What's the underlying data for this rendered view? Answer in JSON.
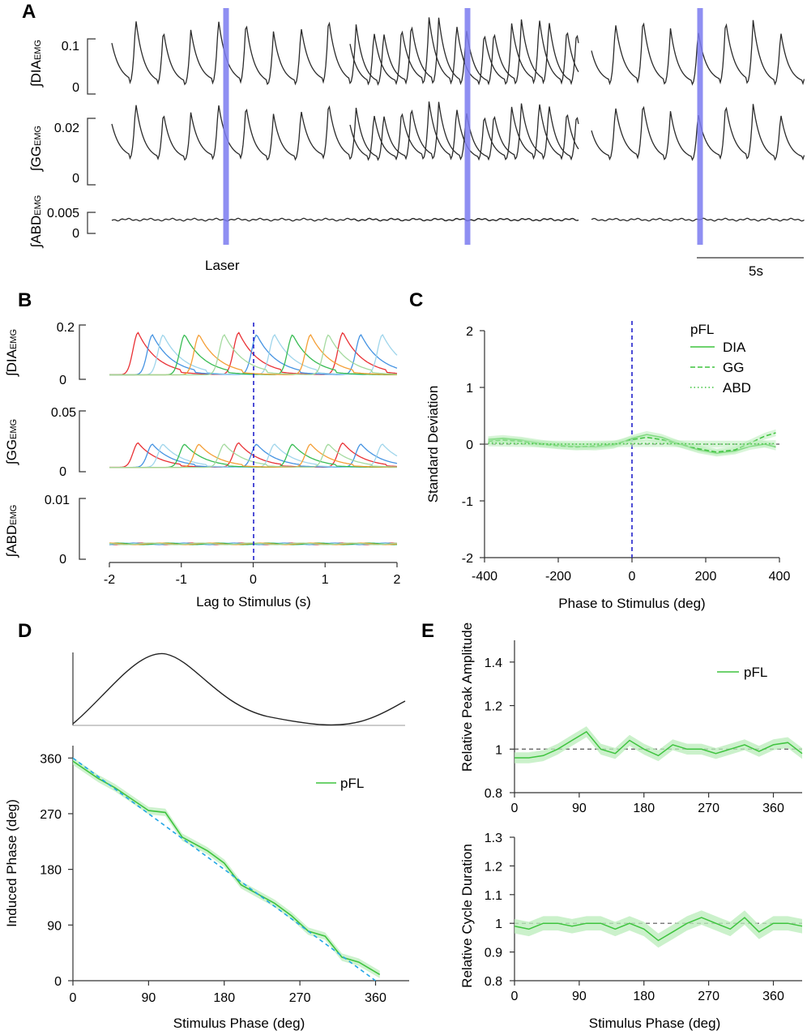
{
  "figure": {
    "panel_labels": [
      "A",
      "B",
      "C",
      "D",
      "E"
    ],
    "colors": {
      "axis": "#333333",
      "trace": "#2b2b2b",
      "laser": "#7b7bf0",
      "green": "#3fc43f",
      "green_band": "#b9ecb9",
      "blue_dash": "#2222cc",
      "cyan_dash": "#22a6e6",
      "zero_dash": "#555555"
    }
  },
  "chart_data": [
    {
      "panel": "A",
      "type": "line",
      "title": "",
      "rows": [
        {
          "label_main": "∫DIA",
          "label_sub": "EMG",
          "tick_top": "0.1",
          "tick_bottom": "0"
        },
        {
          "label_main": "∫GG",
          "label_sub": "EMG",
          "tick_top": "0.02",
          "tick_bottom": "0"
        },
        {
          "label_main": "∫ABD",
          "label_sub": "EMG",
          "tick_top": "0.005",
          "tick_bottom": "0"
        }
      ],
      "laser_label": "Laser",
      "scalebar_label": "5s",
      "segments": 3
    },
    {
      "panel": "B",
      "type": "line",
      "xlabel": "Lag to Stimulus (s)",
      "xlim": [
        -2,
        2
      ],
      "xticks": [
        "-2",
        "-1",
        "0",
        "1",
        "2"
      ],
      "rows": [
        {
          "label_main": "∫DIA",
          "label_sub": "EMG",
          "tick_top": "0.2",
          "tick_bottom": "0"
        },
        {
          "label_main": "∫GG",
          "label_sub": "EMG",
          "tick_top": "0.05",
          "tick_bottom": "0"
        },
        {
          "label_main": "∫ABD",
          "label_sub": "EMG",
          "tick_top": "0.01",
          "tick_bottom": "0"
        }
      ],
      "series_colors": [
        "#e8262a",
        "#3b8de0",
        "#9ad3ea",
        "#2db84b",
        "#f39a2c",
        "#9fd89a"
      ],
      "peak_times": [
        -1.6,
        -1.4,
        -1.25,
        -0.95,
        -0.75,
        -0.4,
        -0.2,
        0.05,
        0.3,
        0.55,
        0.8,
        1.05,
        1.25,
        1.5,
        1.8
      ]
    },
    {
      "panel": "C",
      "type": "line",
      "xlabel": "Phase to Stimulus (deg)",
      "ylabel": "Standard Deviation",
      "xlim": [
        -400,
        400
      ],
      "ylim": [
        -2,
        2
      ],
      "xticks": [
        "-400",
        "-200",
        "0",
        "200",
        "400"
      ],
      "yticks": [
        "2",
        "1",
        "0",
        "-1",
        "-2"
      ],
      "legend_title": "pFL",
      "legend": [
        "DIA",
        "GG",
        "ABD"
      ],
      "series": [
        {
          "name": "DIA",
          "x": [
            -390,
            -350,
            -300,
            -250,
            -200,
            -150,
            -100,
            -50,
            0,
            40,
            80,
            130,
            180,
            230,
            280,
            320,
            360,
            390
          ],
          "values": [
            0.08,
            0.1,
            0.07,
            0.02,
            -0.02,
            -0.04,
            -0.05,
            -0.02,
            0.1,
            0.17,
            0.12,
            0.0,
            -0.1,
            -0.16,
            -0.12,
            -0.04,
            0.0,
            -0.05
          ]
        },
        {
          "name": "GG",
          "x": [
            -390,
            -350,
            -300,
            -250,
            -200,
            -150,
            -100,
            -50,
            0,
            40,
            80,
            130,
            180,
            230,
            280,
            320,
            360,
            390
          ],
          "values": [
            0.05,
            0.07,
            0.05,
            0.0,
            -0.03,
            -0.05,
            -0.03,
            0.0,
            0.08,
            0.12,
            0.08,
            0.0,
            -0.08,
            -0.14,
            -0.1,
            0.02,
            0.14,
            0.2
          ]
        },
        {
          "name": "ABD",
          "x": [
            -390,
            -300,
            -200,
            -100,
            0,
            100,
            200,
            300,
            390
          ],
          "values": [
            0.02,
            0.01,
            0.0,
            0.0,
            0.01,
            0.01,
            0.0,
            0.0,
            0.01
          ]
        }
      ]
    },
    {
      "panel": "D",
      "type": "line",
      "xlabel": "Stimulus Phase (deg)",
      "ylabel": "Induced Phase (deg)",
      "xlim": [
        0,
        400
      ],
      "ylim": [
        0,
        380
      ],
      "xticks": [
        "0",
        "90",
        "180",
        "270",
        "360"
      ],
      "yticks": [
        "360",
        "270",
        "180",
        "90",
        "0"
      ],
      "legend": [
        "pFL"
      ],
      "series": [
        {
          "name": "pFL",
          "x": [
            0,
            30,
            50,
            90,
            110,
            130,
            160,
            180,
            200,
            220,
            240,
            260,
            280,
            300,
            320,
            340,
            365
          ],
          "values": [
            355,
            327,
            312,
            275,
            272,
            232,
            210,
            190,
            155,
            140,
            125,
            105,
            80,
            72,
            38,
            30,
            10
          ]
        },
        {
          "name": "identity",
          "x": [
            0,
            360
          ],
          "values": [
            360,
            0
          ]
        }
      ],
      "cycle_inset": {
        "type": "line",
        "description": "reference respiratory cycle"
      }
    },
    {
      "panel": "E",
      "type": "line",
      "xlabel": "Stimulus Phase (deg)",
      "xlim": [
        0,
        400
      ],
      "xticks": [
        "0",
        "90",
        "180",
        "270",
        "360"
      ],
      "subplots": [
        {
          "ylabel": "Relative Peak Amplitude",
          "ylim": [
            0.8,
            1.5
          ],
          "yticks": [
            "1.4",
            "1.2",
            "1",
            "0.8"
          ],
          "legend": [
            "pFL"
          ],
          "x": [
            0,
            20,
            40,
            60,
            80,
            100,
            120,
            140,
            160,
            180,
            200,
            220,
            240,
            260,
            280,
            300,
            320,
            340,
            360,
            380,
            400
          ],
          "values": [
            0.96,
            0.96,
            0.97,
            1.0,
            1.04,
            1.08,
            1.0,
            0.98,
            1.04,
            1.0,
            0.97,
            1.02,
            1.0,
            1.0,
            0.98,
            1.0,
            1.02,
            0.99,
            1.02,
            1.03,
            0.98
          ]
        },
        {
          "ylabel": "Relative Cycle Duration",
          "ylim": [
            0.8,
            1.3
          ],
          "yticks": [
            "1.3",
            "1.2",
            "1.1",
            "1",
            "0.9",
            "0.8"
          ],
          "x": [
            0,
            20,
            40,
            60,
            80,
            100,
            120,
            140,
            160,
            180,
            200,
            220,
            240,
            260,
            280,
            300,
            320,
            340,
            360,
            380,
            400
          ],
          "values": [
            0.99,
            0.98,
            1.0,
            1.0,
            0.99,
            1.0,
            1.0,
            0.98,
            1.0,
            0.98,
            0.94,
            0.97,
            1.0,
            1.02,
            1.0,
            0.98,
            1.02,
            0.97,
            1.0,
            1.0,
            0.99
          ]
        }
      ]
    }
  ]
}
